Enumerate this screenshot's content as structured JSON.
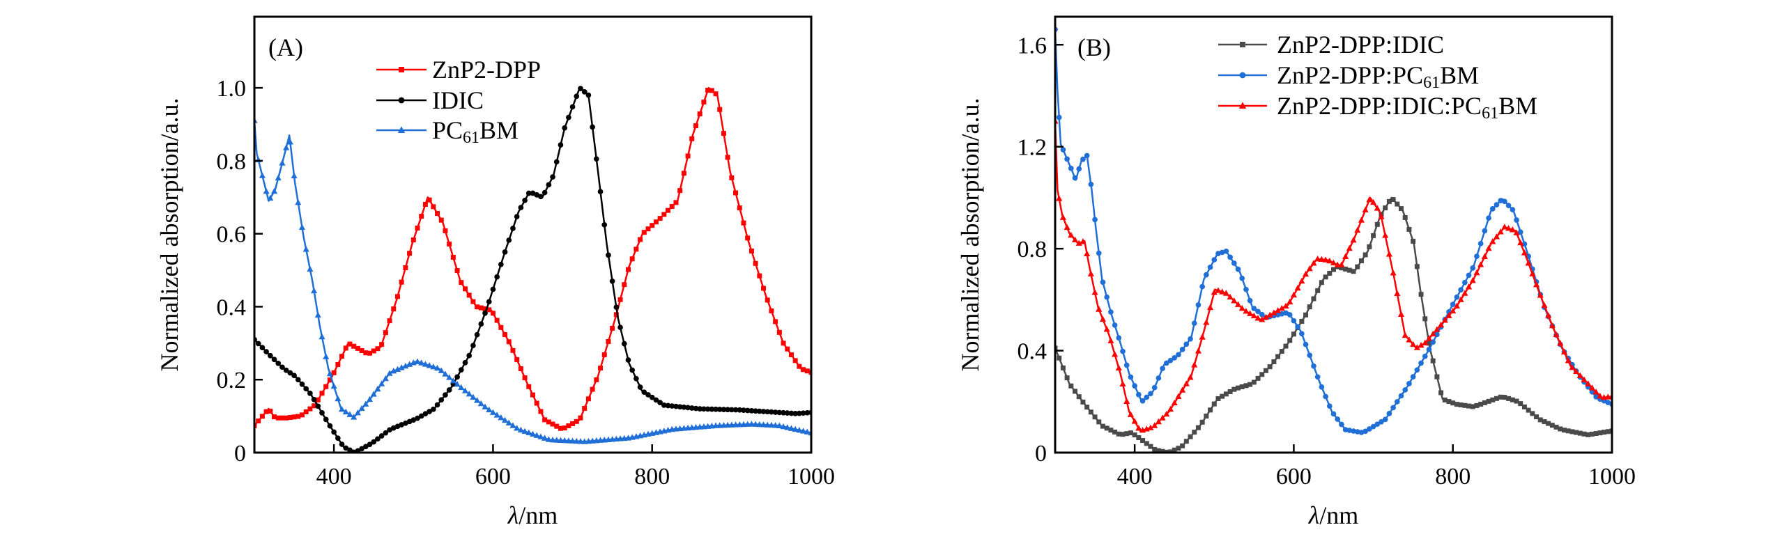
{
  "chart_data": [
    {
      "type": "line",
      "panel_label": "(A)",
      "xlabel_italic": "λ",
      "xlabel_rest": "/nm",
      "ylabel": "Normalized absorption/a.u.",
      "xlim": [
        300,
        1000
      ],
      "ylim": [
        0,
        1.195
      ],
      "xticks": [
        400,
        600,
        800,
        1000
      ],
      "xtick_labels": [
        "400",
        "600",
        "800",
        "1000"
      ],
      "yticks": [
        0,
        0.2,
        0.4,
        0.6,
        0.8,
        1.0
      ],
      "ytick_labels": [
        "0",
        "0.2",
        "0.4",
        "0.6",
        "0.8",
        "1.0"
      ],
      "legend_position": "top-center",
      "series": [
        {
          "name": "ZnP2-DPP",
          "label_main": "ZnP2-DPP",
          "label_sub": "",
          "label_post": "",
          "color": "#ff0000",
          "marker": "square",
          "x": [
            300,
            318,
            326,
            340,
            358,
            376,
            398,
            418,
            443,
            459,
            479,
            498,
            518,
            537,
            559,
            579,
            598,
            621,
            643,
            665,
            687,
            709,
            732,
            754,
            771,
            788,
            809,
            832,
            851,
            871,
            882,
            898,
            921,
            943,
            965,
            987,
            1000
          ],
          "y": [
            0.074,
            0.12,
            0.095,
            0.095,
            0.1,
            0.13,
            0.21,
            0.3,
            0.27,
            0.29,
            0.42,
            0.57,
            0.7,
            0.63,
            0.47,
            0.4,
            0.39,
            0.3,
            0.19,
            0.09,
            0.064,
            0.09,
            0.21,
            0.37,
            0.51,
            0.6,
            0.64,
            0.69,
            0.87,
            1.0,
            0.98,
            0.77,
            0.58,
            0.43,
            0.3,
            0.23,
            0.22
          ]
        },
        {
          "name": "IDIC",
          "label_main": "IDIC",
          "label_sub": "",
          "label_post": "",
          "color": "#000000",
          "marker": "circle",
          "x": [
            300,
            318,
            337,
            351,
            371,
            393,
            412,
            426,
            448,
            471,
            504,
            526,
            548,
            571,
            593,
            615,
            632,
            646,
            662,
            676,
            690,
            709,
            720,
            732,
            743,
            757,
            771,
            787,
            815,
            860,
            909,
            981,
            1000
          ],
          "y": [
            0.31,
            0.27,
            0.23,
            0.21,
            0.16,
            0.08,
            0.016,
            0.0,
            0.026,
            0.064,
            0.093,
            0.12,
            0.18,
            0.27,
            0.4,
            0.55,
            0.66,
            0.715,
            0.7,
            0.76,
            0.89,
            1.0,
            0.98,
            0.77,
            0.57,
            0.37,
            0.245,
            0.17,
            0.13,
            0.12,
            0.117,
            0.107,
            0.11
          ]
        },
        {
          "name": "PC61BM",
          "label_main": "PC",
          "label_sub": "61",
          "label_post": "BM",
          "color": "#1f6fd6",
          "marker": "triangle",
          "x": [
            300,
            303,
            318,
            326,
            337,
            344,
            351,
            362,
            373,
            382,
            393,
            409,
            425,
            443,
            471,
            504,
            532,
            559,
            593,
            632,
            671,
            715,
            771,
            826,
            882,
            926,
            959,
            1000
          ],
          "y": [
            0.91,
            0.82,
            0.69,
            0.72,
            0.81,
            0.87,
            0.74,
            0.59,
            0.47,
            0.35,
            0.23,
            0.12,
            0.097,
            0.14,
            0.22,
            0.25,
            0.23,
            0.18,
            0.12,
            0.064,
            0.035,
            0.03,
            0.04,
            0.064,
            0.074,
            0.078,
            0.074,
            0.054
          ]
        }
      ]
    },
    {
      "type": "line",
      "panel_label": "(B)",
      "xlabel_italic": "λ",
      "xlabel_rest": "/nm",
      "ylabel": "Normalized absorption/a.u.",
      "xlim": [
        300,
        1000
      ],
      "ylim": [
        0,
        1.71
      ],
      "xticks": [
        400,
        600,
        800,
        1000
      ],
      "xtick_labels": [
        "400",
        "600",
        "800",
        "1000"
      ],
      "yticks": [
        0,
        0.4,
        0.8,
        1.2,
        1.6
      ],
      "ytick_labels": [
        "0",
        "0.4",
        "0.8",
        "1.2",
        "1.6"
      ],
      "legend_position": "top-right",
      "series": [
        {
          "name": "ZnP2-DPP:IDIC",
          "label_main": "ZnP2-DPP:IDIC",
          "label_sub": "",
          "label_post": "",
          "color": "#4a4a4a",
          "marker": "square",
          "x": [
            300,
            318,
            337,
            359,
            382,
            396,
            409,
            426,
            443,
            459,
            482,
            504,
            526,
            548,
            571,
            593,
            615,
            637,
            654,
            676,
            693,
            709,
            723,
            737,
            751,
            759,
            771,
            787,
            804,
            826,
            862,
            882,
            909,
            937,
            970,
            1000
          ],
          "y": [
            0.41,
            0.27,
            0.19,
            0.105,
            0.07,
            0.078,
            0.05,
            0.01,
            0.0,
            0.023,
            0.105,
            0.21,
            0.25,
            0.27,
            0.34,
            0.43,
            0.54,
            0.68,
            0.73,
            0.71,
            0.79,
            0.93,
            1.0,
            0.95,
            0.82,
            0.64,
            0.41,
            0.21,
            0.19,
            0.18,
            0.22,
            0.2,
            0.13,
            0.09,
            0.07,
            0.085
          ]
        },
        {
          "name": "ZnP2-DPP:PC61BM",
          "label_main": "ZnP2-DPP:PC",
          "label_sub": "61",
          "label_post": "BM",
          "color": "#1f6fd6",
          "marker": "circle",
          "x": [
            300,
            303,
            307,
            318,
            326,
            333,
            340,
            346,
            351,
            359,
            371,
            382,
            393,
            409,
            423,
            437,
            454,
            471,
            487,
            504,
            515,
            532,
            548,
            565,
            593,
            609,
            632,
            648,
            665,
            687,
            715,
            743,
            771,
            798,
            826,
            848,
            862,
            876,
            893,
            915,
            937,
            959,
            981,
            1000
          ],
          "y": [
            1.66,
            1.42,
            1.21,
            1.13,
            1.07,
            1.145,
            1.165,
            1.03,
            0.885,
            0.68,
            0.54,
            0.43,
            0.31,
            0.2,
            0.24,
            0.345,
            0.38,
            0.45,
            0.68,
            0.78,
            0.79,
            0.71,
            0.57,
            0.53,
            0.55,
            0.475,
            0.28,
            0.16,
            0.09,
            0.078,
            0.13,
            0.26,
            0.41,
            0.57,
            0.73,
            0.95,
            0.995,
            0.95,
            0.79,
            0.57,
            0.41,
            0.3,
            0.215,
            0.19
          ]
        },
        {
          "name": "ZnP2-DPP:IDIC:PC61BM",
          "label_main": "ZnP2-DPP:IDIC:PC",
          "label_sub": "61",
          "label_post": "BM",
          "color": "#ff0000",
          "marker": "triangle",
          "x": [
            300,
            303,
            309,
            318,
            329,
            337,
            343,
            354,
            368,
            382,
            393,
            407,
            423,
            443,
            471,
            487,
            501,
            515,
            537,
            559,
            593,
            615,
            629,
            643,
            659,
            676,
            696,
            709,
            726,
            740,
            754,
            765,
            782,
            804,
            826,
            848,
            865,
            879,
            893,
            909,
            926,
            948,
            970,
            987,
            1000
          ],
          "y": [
            1.3,
            1.03,
            0.93,
            0.86,
            0.82,
            0.83,
            0.73,
            0.57,
            0.46,
            0.31,
            0.16,
            0.085,
            0.1,
            0.16,
            0.3,
            0.475,
            0.64,
            0.625,
            0.56,
            0.52,
            0.58,
            0.7,
            0.76,
            0.755,
            0.73,
            0.84,
            1.0,
            0.94,
            0.69,
            0.46,
            0.41,
            0.43,
            0.49,
            0.57,
            0.68,
            0.82,
            0.885,
            0.87,
            0.76,
            0.625,
            0.49,
            0.34,
            0.27,
            0.215,
            0.22
          ]
        }
      ]
    }
  ]
}
